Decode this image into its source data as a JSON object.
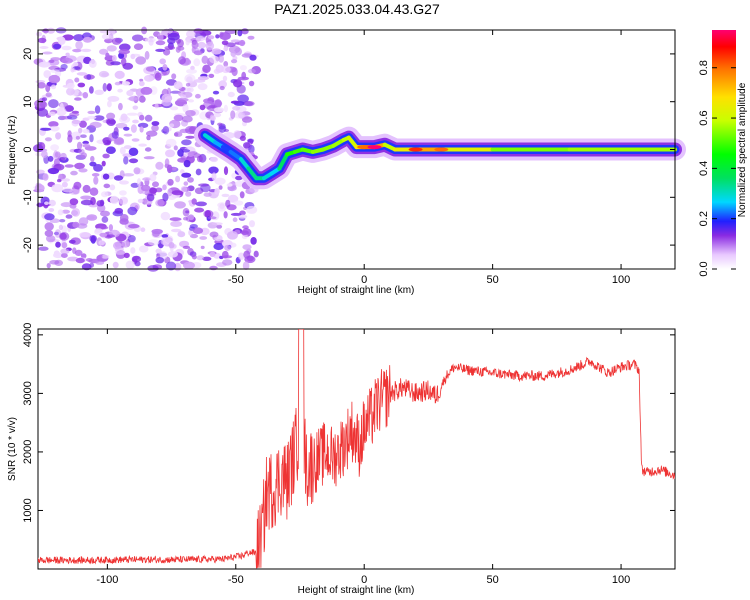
{
  "title": "PAZ1.2025.033.04.43.G27",
  "chart_data": [
    {
      "type": "heatmap",
      "xlabel": "Height of straight line (km)",
      "ylabel": "Frequency (Hz)",
      "xlim": [
        -127,
        121
      ],
      "ylim": [
        -25,
        25
      ],
      "x_ticks": [
        -100,
        -50,
        0,
        50,
        100
      ],
      "y_ticks": [
        -20,
        -10,
        0,
        10,
        20
      ],
      "colorbar": {
        "label": "Normalized spectral amplitude",
        "range": [
          0,
          0.95
        ],
        "ticks": [
          0.0,
          0.2,
          0.4,
          0.6,
          0.8
        ]
      },
      "noise_region_x": [
        -127,
        -42
      ],
      "ridge": {
        "x": [
          -62,
          -58,
          -55,
          -52,
          -48,
          -45,
          -42,
          -39,
          -36,
          -33,
          -30,
          -27,
          -24,
          -20,
          -16,
          -12,
          -8,
          -6,
          -3,
          0,
          4,
          8,
          12,
          20,
          30,
          50,
          80,
          100,
          121
        ],
        "y": [
          3,
          1.5,
          0.5,
          -0.5,
          -2,
          -4,
          -6,
          -6,
          -5,
          -4,
          -1,
          -0.5,
          0,
          -0.5,
          0,
          0.8,
          2,
          2.5,
          0.5,
          0.5,
          0.5,
          1,
          0,
          0,
          0,
          0,
          0,
          0,
          0
        ],
        "amplitude": [
          0.35,
          0.3,
          0.25,
          0.2,
          0.3,
          0.35,
          0.4,
          0.35,
          0.3,
          0.3,
          0.5,
          0.55,
          0.55,
          0.6,
          0.62,
          0.6,
          0.65,
          0.65,
          0.7,
          0.8,
          0.95,
          0.7,
          0.6,
          0.85,
          0.8,
          0.6,
          0.6,
          0.65,
          0.6
        ]
      }
    },
    {
      "type": "line",
      "xlabel": "Height of straight line (km)",
      "ylabel": "SNR (10 * v/v)",
      "xlim": [
        -127,
        121
      ],
      "ylim": [
        0,
        4100
      ],
      "x_ticks": [
        -100,
        -50,
        0,
        50,
        100
      ],
      "y_ticks": [
        1000,
        2000,
        3000,
        4000
      ],
      "color": "#ee3333",
      "series": [
        {
          "x": [
            -127,
            -110,
            -90,
            -70,
            -55,
            -48,
            -45,
            -42,
            -40,
            -38,
            -35,
            -32,
            -30,
            -27,
            -25,
            -22,
            -20,
            -17,
            -15,
            -12,
            -10,
            -7,
            -5,
            -2,
            0,
            3,
            5,
            10,
            15,
            20,
            25,
            28,
            32,
            35,
            40,
            50,
            60,
            70,
            80,
            88,
            95,
            100,
            105,
            107,
            108,
            110,
            115,
            121
          ],
          "y": [
            150,
            150,
            160,
            160,
            170,
            220,
            280,
            280,
            500,
            1300,
            1400,
            1600,
            1500,
            2000,
            2400,
            1700,
            1800,
            1900,
            2000,
            1900,
            2000,
            2200,
            2400,
            2100,
            2400,
            2600,
            2800,
            3000,
            3100,
            3000,
            3050,
            2950,
            3300,
            3450,
            3400,
            3350,
            3300,
            3300,
            3400,
            3550,
            3350,
            3450,
            3500,
            3400,
            1700,
            1650,
            1700,
            1600
          ]
        }
      ],
      "annotations": [
        {
          "x": -24,
          "y": 4100,
          "text": ""
        }
      ]
    }
  ]
}
